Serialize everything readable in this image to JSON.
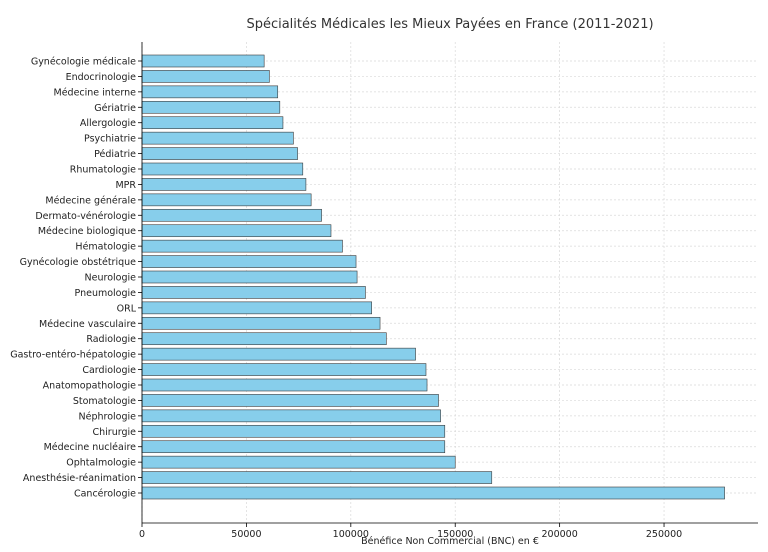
{
  "chart_data": {
    "type": "bar",
    "orientation": "horizontal",
    "title": "Spécialités Médicales les Mieux Payées en France (2011-2021)",
    "xlabel": "Bénéfice Non Commercial (BNC) en €",
    "ylabel": "",
    "xlim": [
      0,
      295000
    ],
    "xticks": [
      0,
      50000,
      100000,
      150000,
      200000,
      250000
    ],
    "grid": true,
    "bar_color": "#87ceeb",
    "categories": [
      "Gynécologie médicale",
      "Endocrinologie",
      "Médecine interne",
      "Gériatrie",
      "Allergologie",
      "Psychiatrie",
      "Pédiatrie",
      "Rhumatologie",
      "MPR",
      "Médecine générale",
      "Dermato-vénérologie",
      "Médecine biologique",
      "Hématologie",
      "Gynécologie obstétrique",
      "Neurologie",
      "Pneumologie",
      "ORL",
      "Médecine vasculaire",
      "Radiologie",
      "Gastro-entéro-hépatologie",
      "Cardiologie",
      "Anatomopathologie",
      "Stomatologie",
      "Néphrologie",
      "Chirurgie",
      "Médecine nucléaire",
      "Ophtalmologie",
      "Anesthésie-réanimation",
      "Cancérologie"
    ],
    "values": [
      58500,
      61000,
      65000,
      66000,
      67500,
      72500,
      74500,
      77000,
      78500,
      81000,
      86000,
      90500,
      96000,
      102500,
      103000,
      107000,
      110000,
      114000,
      117000,
      131000,
      136000,
      136500,
      142000,
      143000,
      145000,
      145000,
      150000,
      167500,
      279000
    ]
  }
}
